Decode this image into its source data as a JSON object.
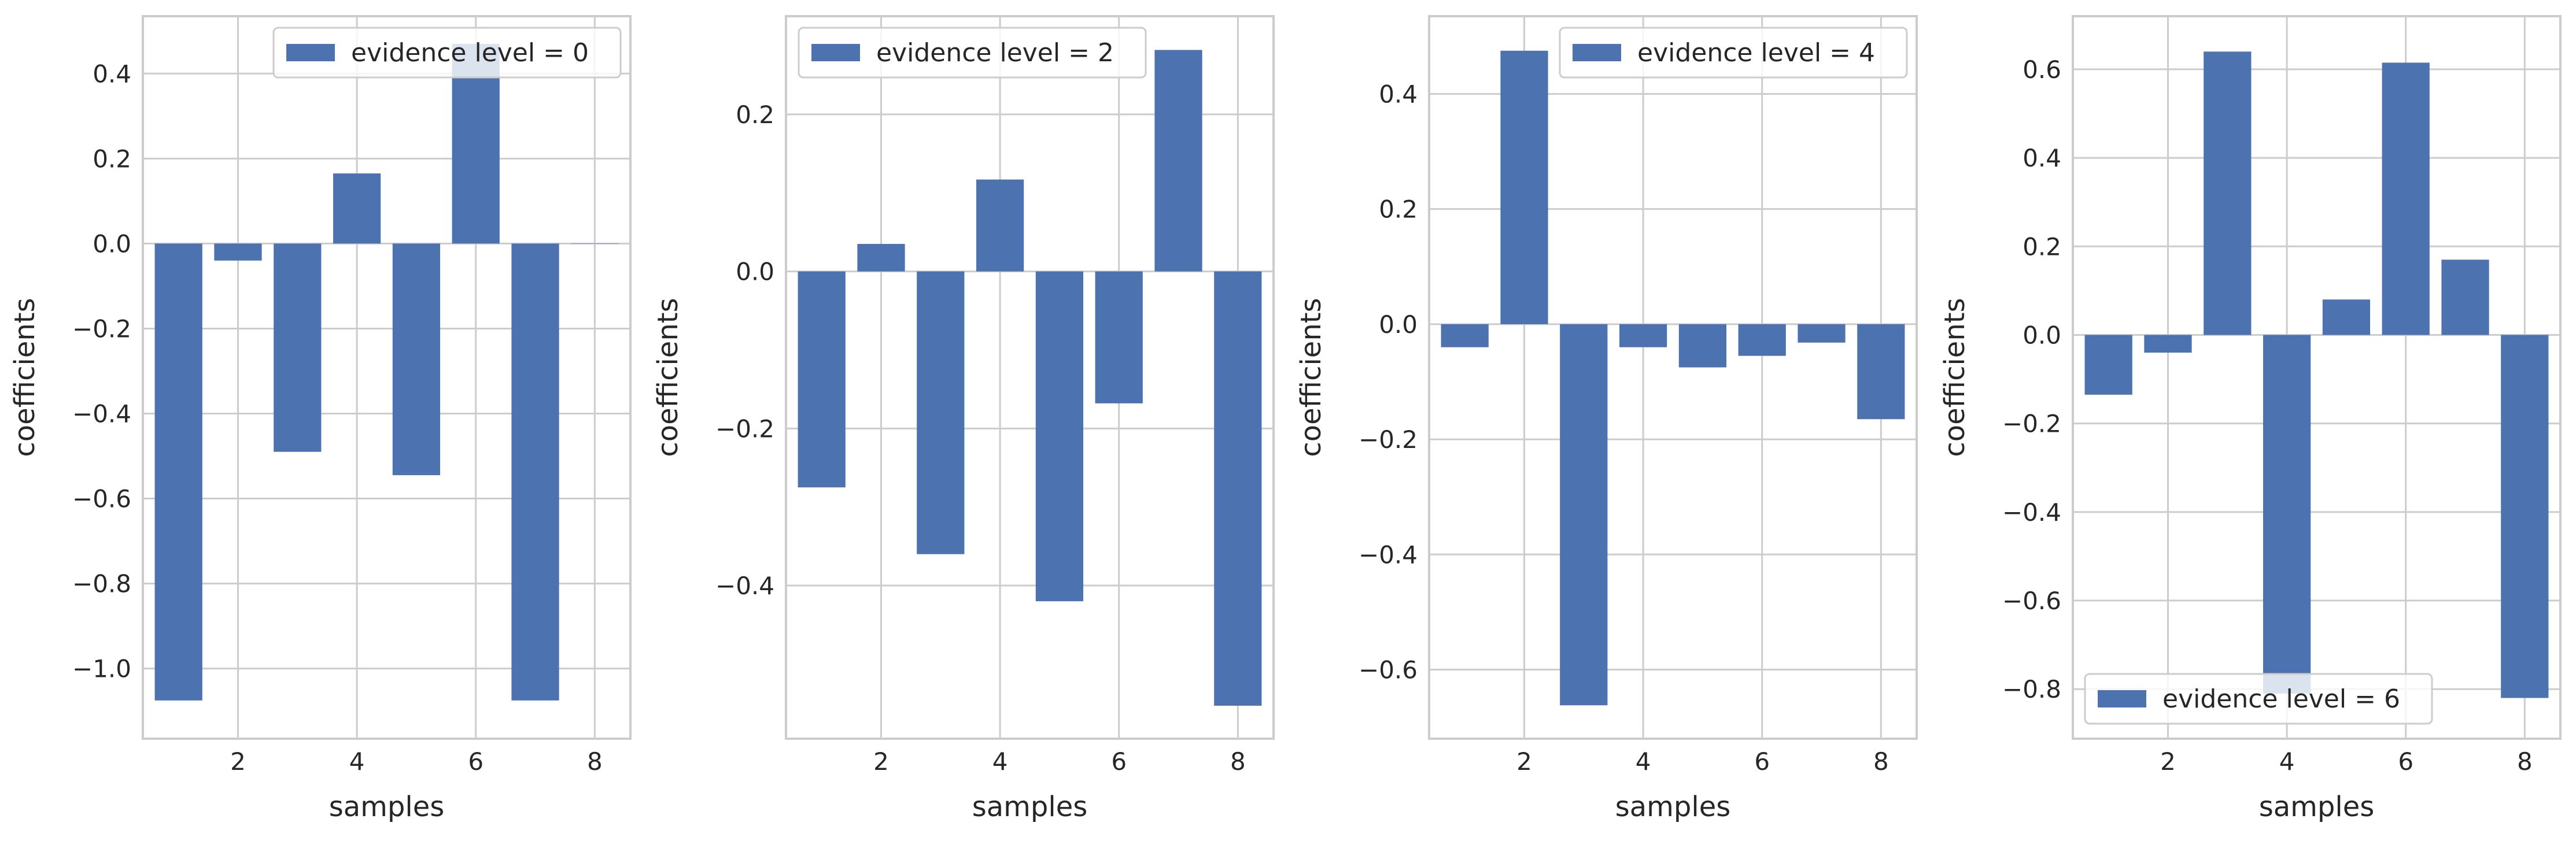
{
  "chart_data": [
    {
      "type": "bar",
      "legend": "evidence level = 0",
      "legend_position": "upper right",
      "xlabel": "samples",
      "ylabel": "coefficients",
      "x": [
        1,
        2,
        3,
        4,
        5,
        6,
        7,
        8
      ],
      "values": [
        -1.075,
        -0.04,
        -0.49,
        0.165,
        -0.545,
        0.47,
        -1.075,
        0.0
      ],
      "xlim": [
        0.4,
        8.6
      ],
      "ylim": [
        -1.165,
        0.535
      ],
      "xticks": [
        2,
        4,
        6,
        8
      ],
      "yticks": [
        -1.0,
        -0.8,
        -0.6,
        -0.4,
        -0.2,
        0.0,
        0.2,
        0.4
      ],
      "ytick_labels": [
        "−1.0",
        "−0.8",
        "−0.6",
        "−0.4",
        "−0.2",
        "0.0",
        "0.2",
        "0.4"
      ],
      "grid": true
    },
    {
      "type": "bar",
      "legend": "evidence level = 2",
      "legend_position": "upper left",
      "xlabel": "samples",
      "ylabel": "coefficients",
      "x": [
        1,
        2,
        3,
        4,
        5,
        6,
        7,
        8
      ],
      "values": [
        -0.275,
        0.035,
        -0.36,
        0.117,
        -0.42,
        -0.168,
        0.282,
        -0.553
      ],
      "xlim": [
        0.4,
        8.6
      ],
      "ylim": [
        -0.595,
        0.325
      ],
      "xticks": [
        2,
        4,
        6,
        8
      ],
      "yticks": [
        -0.4,
        -0.2,
        0.0,
        0.2
      ],
      "ytick_labels": [
        "−0.4",
        "−0.2",
        "0.0",
        "0.2"
      ],
      "grid": true
    },
    {
      "type": "bar",
      "legend": "evidence level = 4",
      "legend_position": "upper right",
      "xlabel": "samples",
      "ylabel": "coefficients",
      "x": [
        1,
        2,
        3,
        4,
        5,
        6,
        7,
        8
      ],
      "values": [
        -0.04,
        0.475,
        -0.662,
        -0.04,
        -0.075,
        -0.055,
        -0.032,
        -0.165
      ],
      "xlim": [
        0.4,
        8.6
      ],
      "ylim": [
        -0.72,
        0.535
      ],
      "xticks": [
        2,
        4,
        6,
        8
      ],
      "yticks": [
        -0.6,
        -0.4,
        -0.2,
        0.0,
        0.2,
        0.4
      ],
      "ytick_labels": [
        "−0.6",
        "−0.4",
        "−0.2",
        "0.0",
        "0.2",
        "0.4"
      ],
      "grid": true
    },
    {
      "type": "bar",
      "legend": "evidence level = 6",
      "legend_position": "lower left",
      "xlabel": "samples",
      "ylabel": "coefficients",
      "x": [
        1,
        2,
        3,
        4,
        5,
        6,
        7,
        8
      ],
      "values": [
        -0.135,
        -0.04,
        0.64,
        -0.81,
        0.08,
        0.615,
        0.17,
        -0.82
      ],
      "xlim": [
        0.4,
        8.6
      ],
      "ylim": [
        -0.912,
        0.72
      ],
      "xticks": [
        2,
        4,
        6,
        8
      ],
      "yticks": [
        -0.8,
        -0.6,
        -0.4,
        -0.2,
        0.0,
        0.2,
        0.4,
        0.6
      ],
      "ytick_labels": [
        "−0.8",
        "−0.6",
        "−0.4",
        "−0.2",
        "0.0",
        "0.2",
        "0.4",
        "0.6"
      ],
      "grid": true
    }
  ],
  "colors": {
    "bar": "#4c72b0",
    "grid": "#cccccc",
    "spine": "#cccccc",
    "text": "#262626",
    "legend_border": "#cccccc"
  }
}
